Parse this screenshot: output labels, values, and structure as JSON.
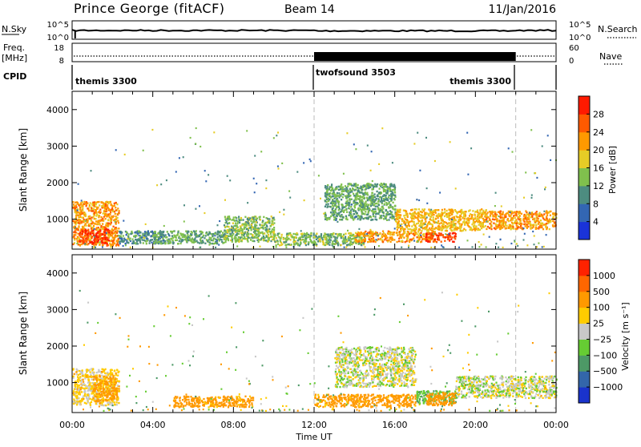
{
  "header": {
    "station": "Prince George (fitACF)",
    "beam": "Beam 14",
    "date": "11/Jan/2016"
  },
  "noise_panel": {
    "left_label": "N.Sky",
    "right_label": "N.Search",
    "left_ticks": [
      "10^5",
      "10^0"
    ],
    "right_ticks": [
      "10^5",
      "10^0"
    ]
  },
  "freq_panel": {
    "left_label": "Freq.",
    "left_unit": "[MHz]",
    "right_label": "Nave",
    "left_ticks": [
      "18",
      "8"
    ],
    "right_ticks": [
      "60",
      "0"
    ]
  },
  "cpid": {
    "label": "CPID",
    "segments": [
      {
        "name": "themis 3300",
        "start": "00:00",
        "end": "12:00"
      },
      {
        "name": "twofsound 3503",
        "start": "12:00",
        "end": "22:00"
      },
      {
        "name": "themis 3300",
        "start": "22:00",
        "end": "24:00"
      }
    ]
  },
  "power_panel": {
    "ylabel": "Slant Range [km]",
    "yticks": [
      "1000",
      "2000",
      "3000",
      "4000"
    ],
    "colorbar_label": "Power [dB]",
    "colorbar_ticks": [
      "4",
      "8",
      "12",
      "16",
      "20",
      "24",
      "28"
    ],
    "colorbar_colors": [
      "#1a33d9",
      "#3366b3",
      "#4d8c80",
      "#80c04d",
      "#e6cc26",
      "#ff9900",
      "#ff5a00",
      "#ff1a00"
    ]
  },
  "velocity_panel": {
    "ylabel": "Slant Range [km]",
    "yticks": [
      "1000",
      "2000",
      "3000",
      "4000"
    ],
    "colorbar_label": "Velocity [m s⁻¹]",
    "colorbar_ticks": [
      "1000",
      "500",
      "100",
      "25",
      "−25",
      "−100",
      "−500",
      "−1000"
    ],
    "colorbar_colors": [
      "#1a33cc",
      "#3366aa",
      "#4d9966",
      "#66cc33",
      "#c8c8c8",
      "#ffcc00",
      "#ff9900",
      "#ff6600",
      "#ff2200"
    ]
  },
  "xaxis": {
    "ticks": [
      "00:00",
      "04:00",
      "08:00",
      "12:00",
      "16:00",
      "20:00",
      "00:00"
    ],
    "label": "Time UT"
  },
  "chart_data": {
    "type": "heatmap",
    "x_range_hours": [
      0,
      24
    ],
    "y_range_km": [
      180,
      4500
    ],
    "mode_change_hours": [
      12,
      22
    ],
    "power_regions": [
      {
        "t0": 0.0,
        "t1": 2.3,
        "r0": 300,
        "r1": 1500,
        "level_db": 22
      },
      {
        "t0": 0.3,
        "t1": 1.8,
        "r0": 350,
        "r1": 750,
        "level_db": 28
      },
      {
        "t0": 2.3,
        "t1": 4.5,
        "r0": 350,
        "r1": 700,
        "level_db": 10
      },
      {
        "t0": 4.0,
        "t1": 7.5,
        "r0": 350,
        "r1": 700,
        "level_db": 12
      },
      {
        "t0": 7.5,
        "t1": 10.0,
        "r0": 400,
        "r1": 1100,
        "level_db": 14
      },
      {
        "t0": 10.0,
        "t1": 14.5,
        "r0": 300,
        "r1": 650,
        "level_db": 14
      },
      {
        "t0": 12.5,
        "t1": 16.0,
        "r0": 1000,
        "r1": 2000,
        "level_db": 12
      },
      {
        "t0": 14.0,
        "t1": 18.0,
        "r0": 400,
        "r1": 700,
        "level_db": 22
      },
      {
        "t0": 16.0,
        "t1": 20.5,
        "r0": 700,
        "r1": 1300,
        "level_db": 20
      },
      {
        "t0": 17.5,
        "t1": 19.0,
        "r0": 400,
        "r1": 650,
        "level_db": 28
      },
      {
        "t0": 20.5,
        "t1": 24.0,
        "r0": 750,
        "r1": 1250,
        "level_db": 22
      }
    ],
    "velocity_regions": [
      {
        "t0": 0.0,
        "t1": 2.3,
        "r0": 400,
        "r1": 1400,
        "v": -50
      },
      {
        "t0": 1.0,
        "t1": 2.2,
        "r0": 500,
        "r1": 1200,
        "v": -150
      },
      {
        "t0": 5.0,
        "t1": 9.0,
        "r0": 350,
        "r1": 650,
        "v": -150
      },
      {
        "t0": 12.0,
        "t1": 17.0,
        "r0": 350,
        "r1": 700,
        "v": -150
      },
      {
        "t0": 13.0,
        "t1": 17.0,
        "r0": 900,
        "r1": 2000,
        "v": 0
      },
      {
        "t0": 17.0,
        "t1": 19.0,
        "r0": 450,
        "r1": 800,
        "v": 80
      },
      {
        "t0": 17.5,
        "t1": 19.0,
        "r0": 400,
        "r1": 750,
        "v": -400
      },
      {
        "t0": 19.0,
        "t1": 24.0,
        "r0": 600,
        "r1": 1200,
        "v": 0
      }
    ]
  }
}
